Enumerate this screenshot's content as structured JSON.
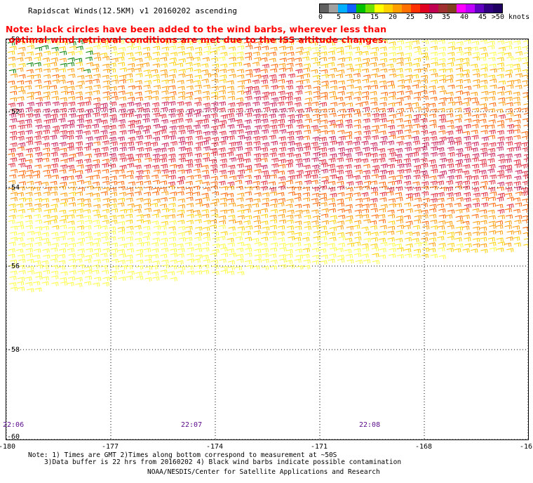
{
  "title": "Rapidscat Winds(12.5KM) v1 20160202 ascending",
  "note": "Note: black circles have been added to the wind barbs, wherever less than\n optimal wind retrieval conditions are met due to the ISS altitude changes.",
  "colorbar": {
    "labels": [
      "0",
      "5",
      "10",
      "15",
      "20",
      "25",
      "30",
      "35",
      "40",
      "45",
      ">50 knots"
    ],
    "colors": [
      "#606060",
      "#a0a0a0",
      "#00b0ff",
      "#1060ff",
      "#00c000",
      "#70e000",
      "#ffff00",
      "#ffd000",
      "#ffa000",
      "#ff7000",
      "#ff3000",
      "#e00020",
      "#c00050",
      "#a03030",
      "#804020",
      "#ff00ff",
      "#c000ff",
      "#6000c0",
      "#300080",
      "#200060"
    ],
    "unit": "knots"
  },
  "map": {
    "lon_labels": [
      "-180",
      "-177",
      "-174",
      "-171",
      "-168",
      "-16"
    ],
    "lat_labels": [
      "-50",
      "-52",
      "-54",
      "-56",
      "-58",
      "-60"
    ],
    "time_labels": [
      "22:06",
      "22:07",
      "22:08"
    ],
    "wind_colors": {
      "weak": "#ffff40",
      "light": "#ffd000",
      "moderate": "#ff9a00",
      "fresh": "#ff6400",
      "strong": "#e0283c",
      "gale": "#c81e5a",
      "flag": "#008000"
    }
  },
  "footnote": {
    "line1": "Note: 1) Times are GMT 2)Times along bottom correspond to measurement at ~50S",
    "line2": "3)Data buffer is 22 hrs from 20160202 4) Black wind barbs indicate possible contamination"
  },
  "credit": "NOAA/NESDIS/Center for Satellite Applications and Research"
}
